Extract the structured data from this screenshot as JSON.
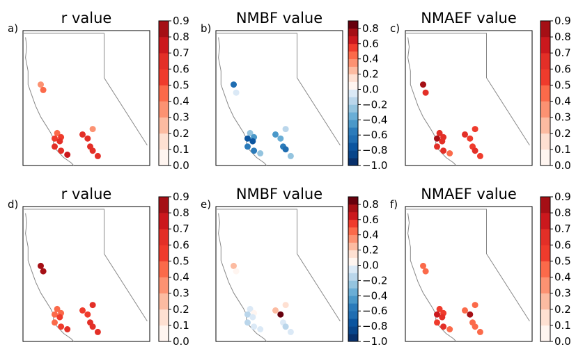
{
  "chart_data": [
    {
      "type": "scatter",
      "panel": "a)",
      "title": "r value",
      "colormap": "Reds",
      "colorbar_ticks": [
        "0.0",
        "0.1",
        "0.2",
        "0.3",
        "0.4",
        "0.5",
        "0.6",
        "0.7",
        "0.8",
        "0.9"
      ],
      "clim": [
        0,
        0.9
      ],
      "points": [
        {
          "x": 0.14,
          "y": 0.4,
          "value": 0.35
        },
        {
          "x": 0.16,
          "y": 0.44,
          "value": 0.45
        },
        {
          "x": 0.27,
          "y": 0.76,
          "value": 0.45
        },
        {
          "x": 0.3,
          "y": 0.79,
          "value": 0.55
        },
        {
          "x": 0.25,
          "y": 0.8,
          "value": 0.55
        },
        {
          "x": 0.29,
          "y": 0.82,
          "value": 0.65
        },
        {
          "x": 0.25,
          "y": 0.86,
          "value": 0.65
        },
        {
          "x": 0.3,
          "y": 0.89,
          "value": 0.65
        },
        {
          "x": 0.35,
          "y": 0.92,
          "value": 0.75
        },
        {
          "x": 0.47,
          "y": 0.77,
          "value": 0.65
        },
        {
          "x": 0.51,
          "y": 0.8,
          "value": 0.65
        },
        {
          "x": 0.55,
          "y": 0.73,
          "value": 0.35
        },
        {
          "x": 0.53,
          "y": 0.86,
          "value": 0.65
        },
        {
          "x": 0.55,
          "y": 0.89,
          "value": 0.65
        },
        {
          "x": 0.59,
          "y": 0.93,
          "value": 0.65
        }
      ]
    },
    {
      "type": "scatter",
      "panel": "b)",
      "title": "NMBF value",
      "colormap": "RdBu_r",
      "colorbar_ticks": [
        "−1.0",
        "−0.8",
        "−0.6",
        "−0.4",
        "−0.2",
        "0.0",
        "0.2",
        "0.4",
        "0.6",
        "0.8"
      ],
      "clim": [
        -1,
        0.9
      ],
      "points": [
        {
          "x": 0.14,
          "y": 0.4,
          "value": -0.65
        },
        {
          "x": 0.16,
          "y": 0.46,
          "value": -0.05
        },
        {
          "x": 0.27,
          "y": 0.76,
          "value": -0.25
        },
        {
          "x": 0.3,
          "y": 0.79,
          "value": -0.5
        },
        {
          "x": 0.25,
          "y": 0.8,
          "value": -0.75
        },
        {
          "x": 0.29,
          "y": 0.82,
          "value": -0.75
        },
        {
          "x": 0.25,
          "y": 0.86,
          "value": -0.55
        },
        {
          "x": 0.3,
          "y": 0.89,
          "value": -0.55
        },
        {
          "x": 0.35,
          "y": 0.91,
          "value": -0.25
        },
        {
          "x": 0.47,
          "y": 0.77,
          "value": -0.5
        },
        {
          "x": 0.51,
          "y": 0.8,
          "value": -0.3
        },
        {
          "x": 0.55,
          "y": 0.73,
          "value": -0.2
        },
        {
          "x": 0.53,
          "y": 0.86,
          "value": -0.55
        },
        {
          "x": 0.55,
          "y": 0.88,
          "value": -0.65
        },
        {
          "x": 0.59,
          "y": 0.93,
          "value": -0.25
        }
      ]
    },
    {
      "type": "scatter",
      "panel": "c)",
      "title": "NMAEF value",
      "colormap": "Reds",
      "colorbar_ticks": [
        "0.0",
        "0.1",
        "0.2",
        "0.3",
        "0.4",
        "0.5",
        "0.6",
        "0.7",
        "0.8",
        "0.9"
      ],
      "clim": [
        0,
        0.9
      ],
      "points": [
        {
          "x": 0.14,
          "y": 0.4,
          "value": 0.85
        },
        {
          "x": 0.16,
          "y": 0.46,
          "value": 0.65
        },
        {
          "x": 0.27,
          "y": 0.76,
          "value": 0.65
        },
        {
          "x": 0.3,
          "y": 0.79,
          "value": 0.65
        },
        {
          "x": 0.25,
          "y": 0.8,
          "value": 0.85
        },
        {
          "x": 0.29,
          "y": 0.82,
          "value": 0.65
        },
        {
          "x": 0.25,
          "y": 0.86,
          "value": 0.65
        },
        {
          "x": 0.3,
          "y": 0.89,
          "value": 0.65
        },
        {
          "x": 0.35,
          "y": 0.91,
          "value": 0.45
        },
        {
          "x": 0.47,
          "y": 0.77,
          "value": 0.65
        },
        {
          "x": 0.51,
          "y": 0.8,
          "value": 0.55
        },
        {
          "x": 0.55,
          "y": 0.73,
          "value": 0.55
        },
        {
          "x": 0.53,
          "y": 0.86,
          "value": 0.55
        },
        {
          "x": 0.55,
          "y": 0.89,
          "value": 0.65
        },
        {
          "x": 0.59,
          "y": 0.93,
          "value": 0.55
        }
      ]
    },
    {
      "type": "scatter",
      "panel": "d)",
      "title": "r value",
      "colormap": "Reds",
      "colorbar_ticks": [
        "0.0",
        "0.1",
        "0.2",
        "0.3",
        "0.4",
        "0.5",
        "0.6",
        "0.7",
        "0.8",
        "0.9"
      ],
      "clim": [
        0,
        0.9
      ],
      "points": [
        {
          "x": 0.14,
          "y": 0.44,
          "value": 0.85
        },
        {
          "x": 0.16,
          "y": 0.48,
          "value": 0.85
        },
        {
          "x": 0.27,
          "y": 0.76,
          "value": 0.45
        },
        {
          "x": 0.3,
          "y": 0.79,
          "value": 0.45
        },
        {
          "x": 0.25,
          "y": 0.8,
          "value": 0.45
        },
        {
          "x": 0.29,
          "y": 0.82,
          "value": 0.55
        },
        {
          "x": 0.25,
          "y": 0.86,
          "value": 0.45
        },
        {
          "x": 0.3,
          "y": 0.89,
          "value": 0.55
        },
        {
          "x": 0.35,
          "y": 0.91,
          "value": 0.65
        },
        {
          "x": 0.47,
          "y": 0.77,
          "value": 0.55
        },
        {
          "x": 0.51,
          "y": 0.8,
          "value": 0.55
        },
        {
          "x": 0.55,
          "y": 0.73,
          "value": 0.65
        },
        {
          "x": 0.53,
          "y": 0.86,
          "value": 0.65
        },
        {
          "x": 0.55,
          "y": 0.89,
          "value": 0.65
        },
        {
          "x": 0.59,
          "y": 0.93,
          "value": 0.65
        }
      ]
    },
    {
      "type": "scatter",
      "panel": "e)",
      "title": "NMBF value",
      "colormap": "RdBu_r",
      "colorbar_ticks": [
        "−1.0",
        "−0.8",
        "−0.6",
        "−0.4",
        "−0.2",
        "0.0",
        "0.2",
        "0.4",
        "0.6",
        "0.8"
      ],
      "clim": [
        -1,
        0.9
      ],
      "points": [
        {
          "x": 0.14,
          "y": 0.44,
          "value": 0.2
        },
        {
          "x": 0.16,
          "y": 0.48,
          "value": 0.05
        },
        {
          "x": 0.27,
          "y": 0.76,
          "value": -0.05
        },
        {
          "x": 0.3,
          "y": 0.79,
          "value": 0.0
        },
        {
          "x": 0.25,
          "y": 0.8,
          "value": -0.15
        },
        {
          "x": 0.29,
          "y": 0.82,
          "value": -0.1
        },
        {
          "x": 0.25,
          "y": 0.86,
          "value": -0.2
        },
        {
          "x": 0.3,
          "y": 0.89,
          "value": -0.05
        },
        {
          "x": 0.35,
          "y": 0.91,
          "value": -0.1
        },
        {
          "x": 0.47,
          "y": 0.77,
          "value": 0.2
        },
        {
          "x": 0.51,
          "y": 0.8,
          "value": 0.85
        },
        {
          "x": 0.55,
          "y": 0.73,
          "value": 0.1
        },
        {
          "x": 0.53,
          "y": 0.86,
          "value": -0.1
        },
        {
          "x": 0.55,
          "y": 0.89,
          "value": -0.15
        },
        {
          "x": 0.59,
          "y": 0.93,
          "value": -0.05
        }
      ]
    },
    {
      "type": "scatter",
      "panel": "f)",
      "title": "NMAEF value",
      "colormap": "Reds",
      "colorbar_ticks": [
        "0.0",
        "0.1",
        "0.2",
        "0.3",
        "0.4",
        "0.5",
        "0.6",
        "0.7",
        "0.8",
        "0.9"
      ],
      "clim": [
        0,
        0.9
      ],
      "points": [
        {
          "x": 0.14,
          "y": 0.44,
          "value": 0.45
        },
        {
          "x": 0.16,
          "y": 0.48,
          "value": 0.45
        },
        {
          "x": 0.27,
          "y": 0.76,
          "value": 0.55
        },
        {
          "x": 0.3,
          "y": 0.79,
          "value": 0.55
        },
        {
          "x": 0.25,
          "y": 0.8,
          "value": 0.75
        },
        {
          "x": 0.29,
          "y": 0.82,
          "value": 0.65
        },
        {
          "x": 0.25,
          "y": 0.86,
          "value": 0.55
        },
        {
          "x": 0.3,
          "y": 0.89,
          "value": 0.65
        },
        {
          "x": 0.35,
          "y": 0.91,
          "value": 0.45
        },
        {
          "x": 0.47,
          "y": 0.77,
          "value": 0.45
        },
        {
          "x": 0.51,
          "y": 0.8,
          "value": 0.85
        },
        {
          "x": 0.55,
          "y": 0.73,
          "value": 0.45
        },
        {
          "x": 0.53,
          "y": 0.86,
          "value": 0.45
        },
        {
          "x": 0.55,
          "y": 0.89,
          "value": 0.45
        },
        {
          "x": 0.59,
          "y": 0.93,
          "value": 0.45
        }
      ]
    }
  ]
}
